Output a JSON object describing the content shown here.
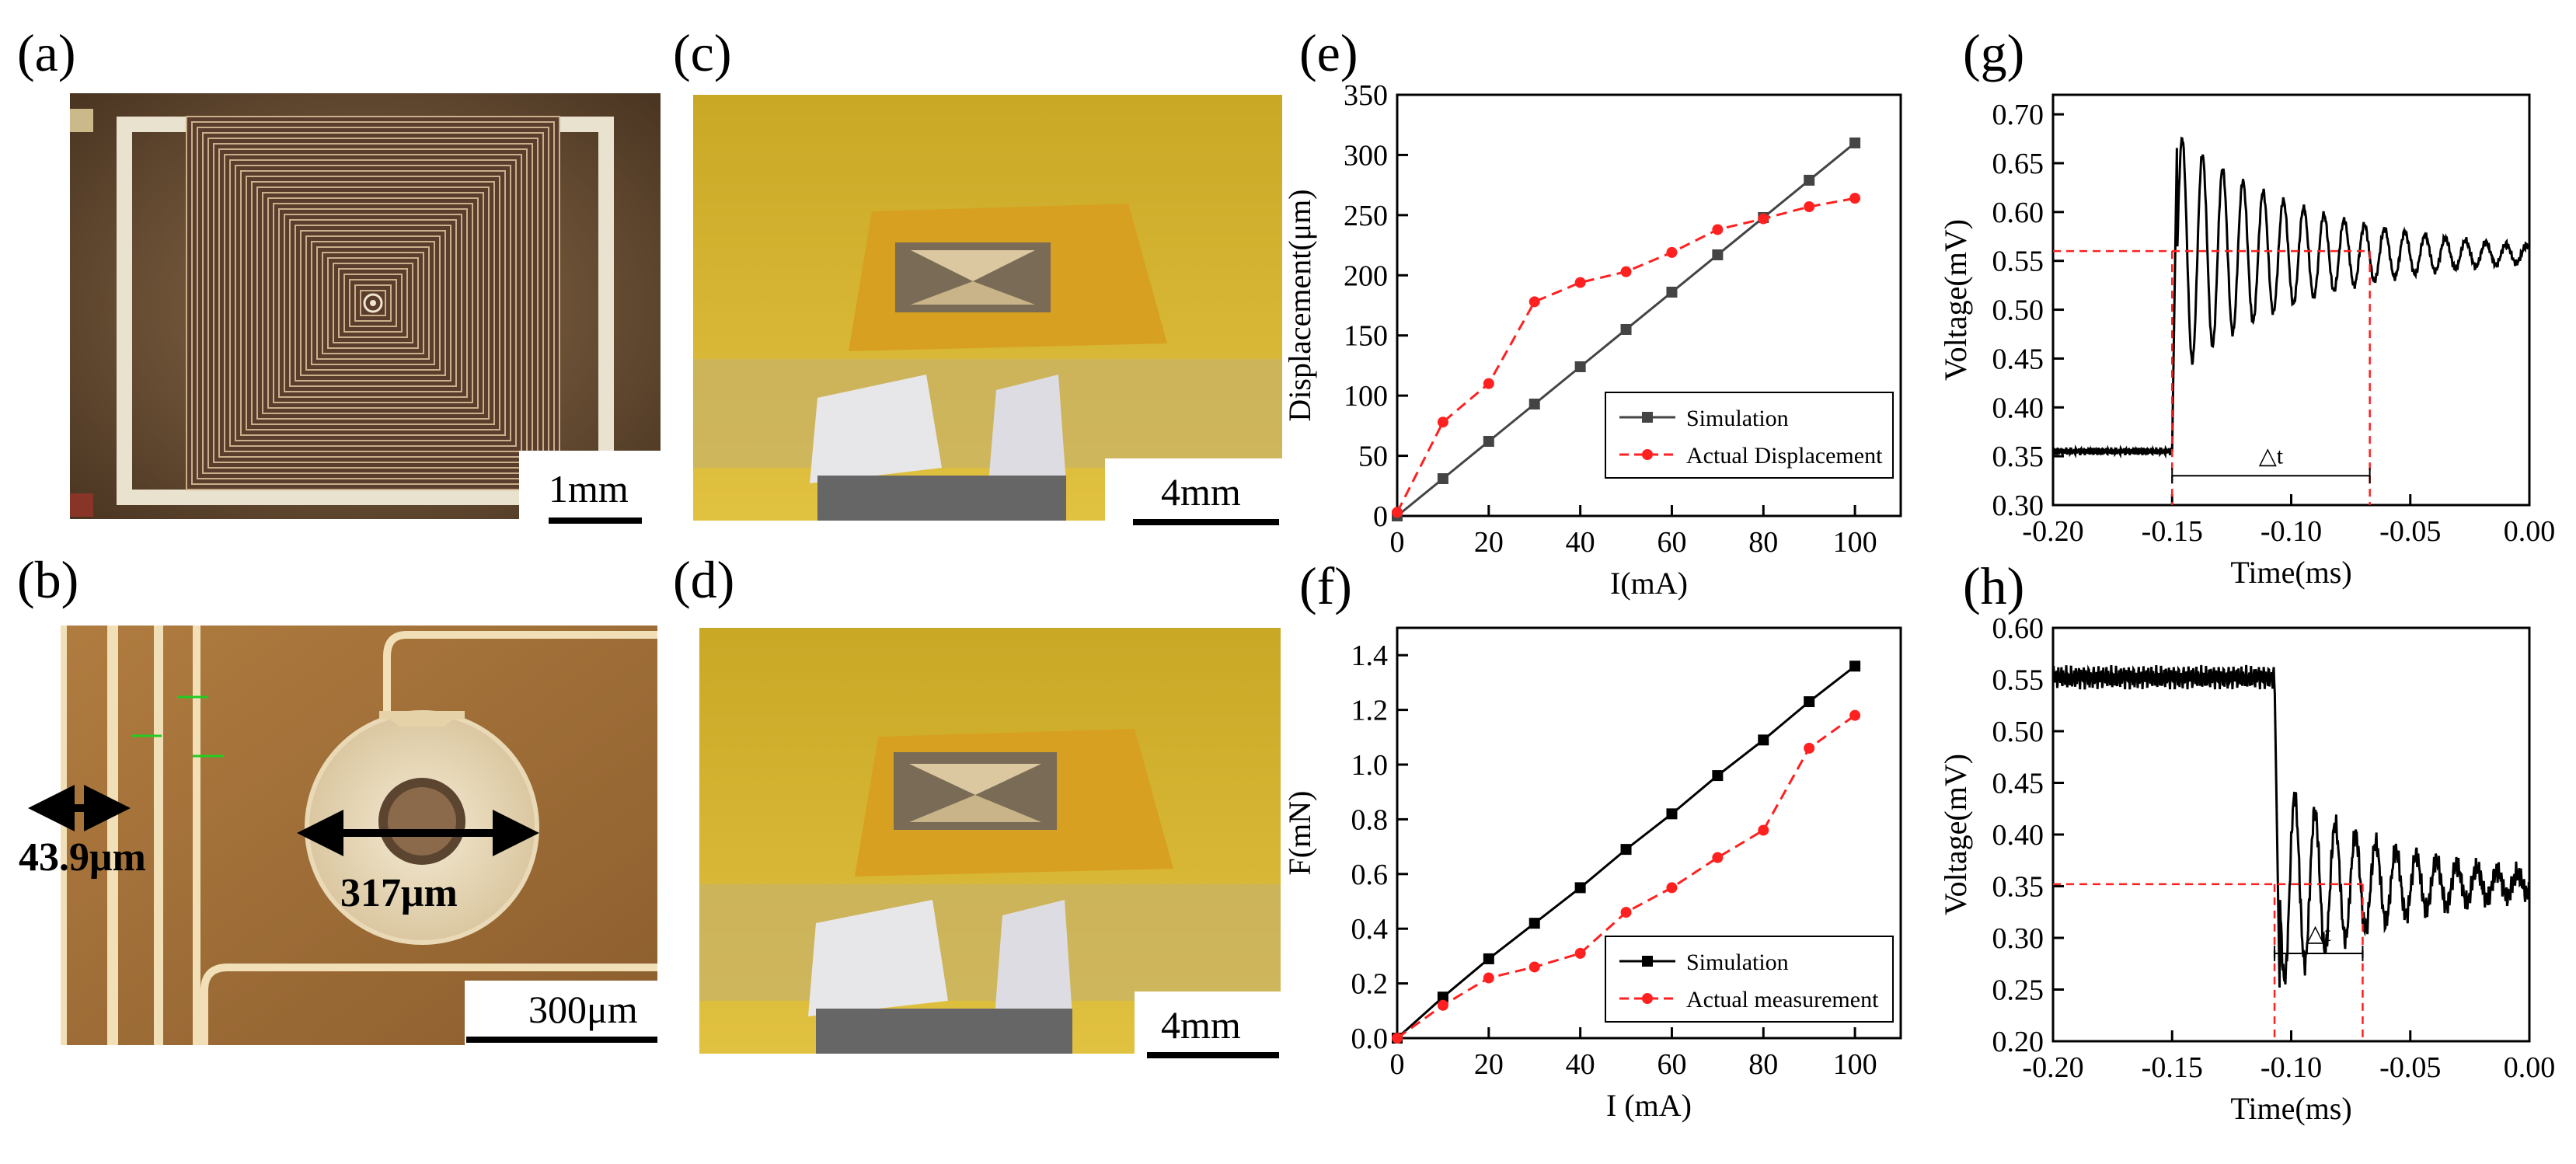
{
  "colors": {
    "simulation": "#000000",
    "simulation_e": "#444444",
    "measured": "#ff2020",
    "guide": "#ff2020",
    "copper": "#a6743a",
    "gold": "#d4b22a"
  },
  "photos": {
    "a": {
      "label": "(a)",
      "scale": "1mm",
      "alt": "spiral coil micrograph"
    },
    "b": {
      "label": "(b)",
      "scale": "300μm",
      "dim_line_width": "43.9μm",
      "dim_hole": "317μm",
      "alt": "coil center pad micrograph"
    },
    "c": {
      "label": "(c)",
      "scale": "4mm",
      "alt": "actuator on fabric, state 1"
    },
    "d": {
      "label": "(d)",
      "scale": "4mm",
      "alt": "actuator on fabric, state 2"
    }
  },
  "chart_data": [
    {
      "id": "e",
      "label": "(e)",
      "type": "line",
      "xlabel": "I(mA)",
      "ylabel": "Displacement(μm)",
      "xlim": [
        0,
        110
      ],
      "ylim": [
        0,
        350
      ],
      "xticks": [
        0,
        20,
        40,
        60,
        80,
        100
      ],
      "yticks": [
        0,
        50,
        100,
        150,
        200,
        250,
        300,
        350
      ],
      "legend_position": "lower-right",
      "series": [
        {
          "name": "Simulation",
          "style": "solid",
          "marker": "square",
          "x": [
            0,
            10,
            20,
            30,
            40,
            50,
            60,
            70,
            80,
            90,
            100
          ],
          "y": [
            0,
            31,
            62,
            93,
            124,
            155,
            186,
            217,
            248,
            279,
            310
          ]
        },
        {
          "name": "Actual Displacement",
          "style": "dashed",
          "marker": "circle",
          "x": [
            0,
            10,
            20,
            30,
            40,
            50,
            60,
            70,
            80,
            90,
            100
          ],
          "y": [
            3,
            78,
            110,
            178,
            194,
            203,
            219,
            238,
            247,
            257,
            264
          ]
        }
      ]
    },
    {
      "id": "f",
      "label": "(f)",
      "type": "line",
      "xlabel": "I (mA)",
      "ylabel": "F(mN)",
      "xlim": [
        0,
        110
      ],
      "ylim": [
        0,
        1.5
      ],
      "xticks": [
        0,
        20,
        40,
        60,
        80,
        100
      ],
      "yticks": [
        0.0,
        0.2,
        0.4,
        0.6,
        0.8,
        1.0,
        1.2,
        1.4
      ],
      "legend_position": "lower-right",
      "series": [
        {
          "name": "Simulation",
          "style": "solid",
          "marker": "square",
          "x": [
            0,
            10,
            20,
            30,
            40,
            50,
            60,
            70,
            80,
            90,
            100
          ],
          "y": [
            0,
            0.15,
            0.29,
            0.42,
            0.55,
            0.69,
            0.82,
            0.96,
            1.09,
            1.23,
            1.36
          ]
        },
        {
          "name": "Actual measurement",
          "style": "dashed",
          "marker": "circle",
          "x": [
            0,
            10,
            20,
            30,
            40,
            50,
            60,
            70,
            80,
            90,
            100
          ],
          "y": [
            0,
            0.12,
            0.22,
            0.26,
            0.31,
            0.46,
            0.55,
            0.66,
            0.76,
            1.06,
            1.18
          ]
        }
      ]
    },
    {
      "id": "g",
      "label": "(g)",
      "type": "line",
      "xlabel": "Time(ms)",
      "ylabel": "Voltage(mV)",
      "xlim": [
        -0.2,
        0.0
      ],
      "ylim": [
        0.3,
        0.72
      ],
      "xticks": [
        -0.2,
        -0.15,
        -0.1,
        -0.05,
        0.0
      ],
      "yticks": [
        0.3,
        0.35,
        0.4,
        0.45,
        0.5,
        0.55,
        0.6,
        0.65,
        0.7
      ],
      "annotation": "△t",
      "signal": {
        "baseline_before": 0.355,
        "step_time": -0.15,
        "settled": 0.557,
        "overshoot_peak": 0.685,
        "ring_decay": 18.0,
        "ring_period": 0.0085,
        "noise": 0.004
      },
      "guides": {
        "hline_y": 0.56,
        "vline_x": -0.067,
        "delta_t": [
          -0.15,
          -0.067
        ],
        "arrow_y": 0.33
      }
    },
    {
      "id": "h",
      "label": "(h)",
      "type": "line",
      "xlabel": "Time(ms)",
      "ylabel": "Voltage(mV)",
      "xlim": [
        -0.2,
        0.0
      ],
      "ylim": [
        0.2,
        0.6
      ],
      "xticks": [
        -0.2,
        -0.15,
        -0.1,
        -0.05,
        0.0
      ],
      "yticks": [
        0.2,
        0.25,
        0.3,
        0.35,
        0.4,
        0.45,
        0.5,
        0.55,
        0.6
      ],
      "annotation": "△t",
      "signal": {
        "baseline_before": 0.552,
        "step_time": -0.107,
        "settled": 0.352,
        "undershoot_min": 0.25,
        "ring_decay": 22.0,
        "ring_period": 0.0085,
        "noise": 0.012
      },
      "guides": {
        "hline_y": 0.352,
        "vline_x": -0.07,
        "delta_t": [
          -0.107,
          -0.07
        ],
        "arrow_y": 0.285
      }
    }
  ]
}
